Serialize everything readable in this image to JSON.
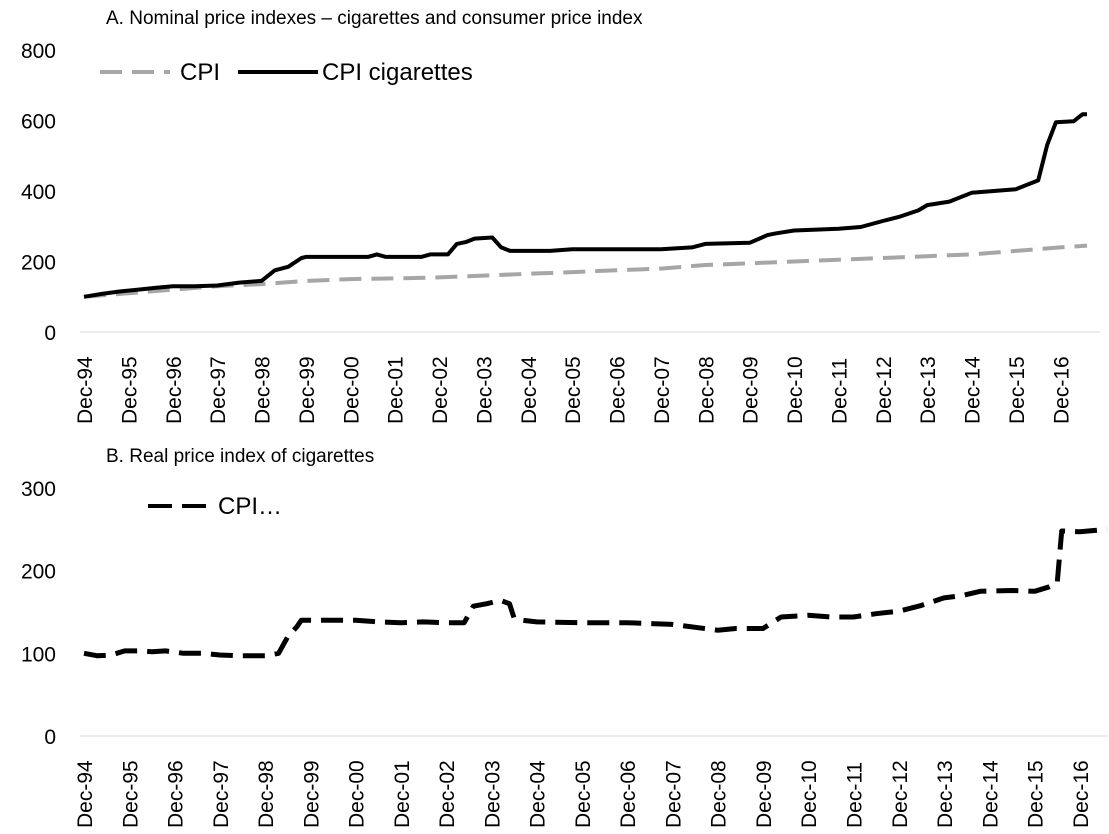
{
  "chart_data": [
    {
      "type": "line",
      "title": "A.    Nominal price indexes – cigarettes and consumer price index",
      "xlabel": "",
      "ylabel": "",
      "ylim": [
        0,
        800
      ],
      "yticks": [
        0,
        200,
        400,
        600,
        800
      ],
      "legend_position": "top-left",
      "grid": false,
      "categories": [
        "Dec-94",
        "Dec-95",
        "Dec-96",
        "Dec-97",
        "Dec-98",
        "Dec-99",
        "Dec-00",
        "Dec-01",
        "Dec-02",
        "Dec-03",
        "Dec-04",
        "Dec-05",
        "Dec-06",
        "Dec-07",
        "Dec-08",
        "Dec-09",
        "Dec-10",
        "Dec-11",
        "Dec-12",
        "Dec-13",
        "Dec-14",
        "Dec-15",
        "Dec-16"
      ],
      "x_range": [
        0,
        22.6
      ],
      "series": [
        {
          "name": "CPI",
          "color": "#a6a6a6",
          "dash": "dashed",
          "points": [
            [
              0,
              100
            ],
            [
              1,
              110
            ],
            [
              2,
              120
            ],
            [
              3,
              130
            ],
            [
              4,
              136
            ],
            [
              5,
              145
            ],
            [
              6,
              150
            ],
            [
              7,
              152
            ],
            [
              8,
              155
            ],
            [
              9,
              160
            ],
            [
              10,
              165
            ],
            [
              11,
              170
            ],
            [
              12,
              175
            ],
            [
              13,
              180
            ],
            [
              14,
              190
            ],
            [
              15,
              195
            ],
            [
              16,
              200
            ],
            [
              17,
              205
            ],
            [
              18,
              210
            ],
            [
              19,
              215
            ],
            [
              20,
              220
            ],
            [
              21,
              230
            ],
            [
              22,
              240
            ],
            [
              22.6,
              245
            ]
          ]
        },
        {
          "name": "CPI cigarettes",
          "color": "#000000",
          "dash": "solid",
          "points": [
            [
              0,
              100
            ],
            [
              0.4,
              108
            ],
            [
              0.8,
              115
            ],
            [
              1.2,
              120
            ],
            [
              1.6,
              125
            ],
            [
              2,
              130
            ],
            [
              2.5,
              130
            ],
            [
              3,
              132
            ],
            [
              3.5,
              140
            ],
            [
              4,
              145
            ],
            [
              4.3,
              175
            ],
            [
              4.6,
              185
            ],
            [
              4.9,
              210
            ],
            [
              5,
              213
            ],
            [
              6.4,
              213
            ],
            [
              6.6,
              220
            ],
            [
              6.8,
              213
            ],
            [
              7.6,
              213
            ],
            [
              7.8,
              220
            ],
            [
              8.2,
              220
            ],
            [
              8.4,
              250
            ],
            [
              8.6,
              255
            ],
            [
              8.8,
              265
            ],
            [
              9.2,
              268
            ],
            [
              9.4,
              240
            ],
            [
              9.6,
              230
            ],
            [
              10.5,
              230
            ],
            [
              11,
              235
            ],
            [
              12,
              235
            ],
            [
              13,
              235
            ],
            [
              13.7,
              240
            ],
            [
              14,
              250
            ],
            [
              15,
              253
            ],
            [
              15.4,
              275
            ],
            [
              15.6,
              280
            ],
            [
              16,
              288
            ],
            [
              17,
              293
            ],
            [
              17.5,
              298
            ],
            [
              18,
              315
            ],
            [
              18.4,
              328
            ],
            [
              18.8,
              345
            ],
            [
              19,
              360
            ],
            [
              19.5,
              370
            ],
            [
              20,
              395
            ],
            [
              20.5,
              400
            ],
            [
              21,
              405
            ],
            [
              21.5,
              430
            ],
            [
              21.7,
              530
            ],
            [
              21.9,
              595
            ],
            [
              22.3,
              598
            ],
            [
              22.5,
              618
            ],
            [
              22.6,
              618
            ]
          ]
        }
      ]
    },
    {
      "type": "line",
      "title": "B.    Real price index of cigarettes",
      "xlabel": "",
      "ylabel": "",
      "ylim": [
        0,
        300
      ],
      "yticks": [
        0,
        100,
        200,
        300
      ],
      "legend_position": "top-left",
      "grid": false,
      "categories": [
        "Dec-94",
        "Dec-95",
        "Dec-96",
        "Dec-97",
        "Dec-98",
        "Dec-99",
        "Dec-00",
        "Dec-01",
        "Dec-02",
        "Dec-03",
        "Dec-04",
        "Dec-05",
        "Dec-06",
        "Dec-07",
        "Dec-08",
        "Dec-09",
        "Dec-10",
        "Dec-11",
        "Dec-12",
        "Dec-13",
        "Dec-14",
        "Dec-15",
        "Dec-16"
      ],
      "x_range": [
        0,
        22.6
      ],
      "series": [
        {
          "name": "CPI…",
          "color": "#000000",
          "dash": "dashed",
          "points": [
            [
              0,
              100
            ],
            [
              0.3,
              97
            ],
            [
              0.6,
              98
            ],
            [
              0.9,
              103
            ],
            [
              1.2,
              103
            ],
            [
              1.5,
              102
            ],
            [
              1.8,
              103
            ],
            [
              2.2,
              100
            ],
            [
              2.6,
              100
            ],
            [
              3,
              98
            ],
            [
              3.5,
              97
            ],
            [
              4,
              97
            ],
            [
              4.3,
              100
            ],
            [
              4.5,
              120
            ],
            [
              4.7,
              132
            ],
            [
              4.8,
              140
            ],
            [
              5.2,
              140
            ],
            [
              6,
              140
            ],
            [
              6.5,
              138
            ],
            [
              7,
              137
            ],
            [
              7.5,
              138
            ],
            [
              8,
              137
            ],
            [
              8.4,
              137
            ],
            [
              8.6,
              157
            ],
            [
              8.9,
              160
            ],
            [
              9.2,
              164
            ],
            [
              9.4,
              160
            ],
            [
              9.5,
              143
            ],
            [
              9.7,
              140
            ],
            [
              10,
              138
            ],
            [
              11,
              137
            ],
            [
              12,
              137
            ],
            [
              13,
              135
            ],
            [
              14,
              128
            ],
            [
              14.4,
              130
            ],
            [
              15,
              130
            ],
            [
              15.4,
              144
            ],
            [
              16,
              146
            ],
            [
              16.5,
              144
            ],
            [
              17,
              144
            ],
            [
              17.5,
              148
            ],
            [
              18,
              151
            ],
            [
              18.5,
              158
            ],
            [
              19,
              167
            ],
            [
              19.4,
              170
            ],
            [
              19.8,
              175
            ],
            [
              20.5,
              176
            ],
            [
              21,
              175
            ],
            [
              21.3,
              180
            ],
            [
              21.5,
              185
            ],
            [
              21.6,
              248
            ],
            [
              22,
              247
            ],
            [
              22.6,
              250
            ]
          ]
        }
      ]
    }
  ]
}
